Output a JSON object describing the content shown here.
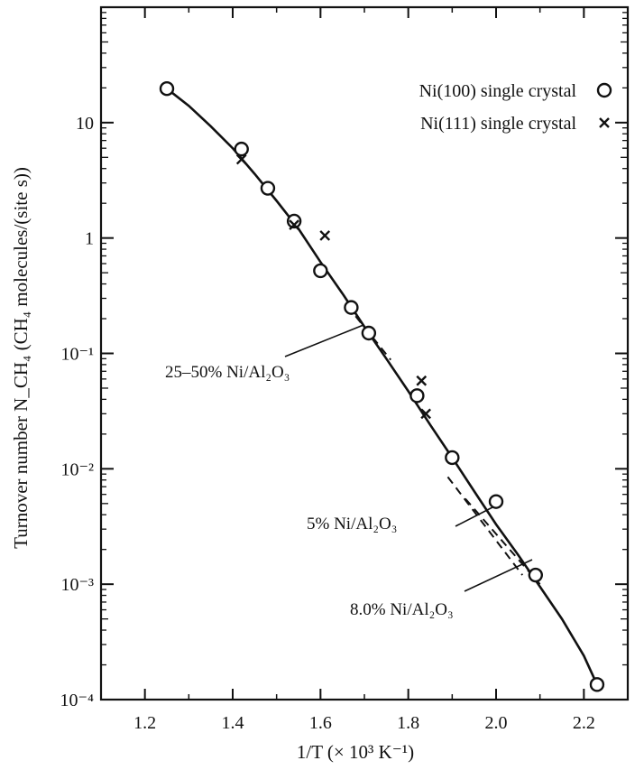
{
  "chart_data": {
    "type": "scatter",
    "xlabel": "1/T (× 10³ K⁻¹)",
    "ylabel": "Turnover number N_CH₄ (CH₄ molecules/(site s))",
    "xlim": [
      1.1,
      2.3
    ],
    "ylim": [
      0.0001,
      100
    ],
    "log_y": true,
    "grid": false,
    "legend_position": "top-right",
    "x_ticks": [
      {
        "value": 1.2,
        "label": "1.2"
      },
      {
        "value": 1.4,
        "label": "1.4"
      },
      {
        "value": 1.6,
        "label": "1.6"
      },
      {
        "value": 1.8,
        "label": "1.8"
      },
      {
        "value": 2.0,
        "label": "2.0"
      },
      {
        "value": 2.2,
        "label": "2.2"
      }
    ],
    "y_ticks": [
      {
        "value": 10,
        "label": "10"
      },
      {
        "value": 1,
        "label": "1"
      },
      {
        "value": 0.1,
        "label": "10⁻¹"
      },
      {
        "value": 0.01,
        "label": "10⁻²"
      },
      {
        "value": 0.001,
        "label": "10⁻³"
      },
      {
        "value": 0.0001,
        "label": "10⁻⁴"
      }
    ],
    "series": [
      {
        "name": "Ni(100) single crystal",
        "marker": "circle",
        "x": [
          1.25,
          1.42,
          1.48,
          1.54,
          1.6,
          1.67,
          1.71,
          1.82,
          1.9,
          2.0,
          2.09,
          2.23
        ],
        "y": [
          19.7,
          5.9,
          2.7,
          1.4,
          0.52,
          0.25,
          0.15,
          0.043,
          0.0125,
          0.0052,
          0.0012,
          0.000135
        ]
      },
      {
        "name": "Ni(111) single crystal",
        "marker": "cross",
        "x": [
          1.42,
          1.54,
          1.61,
          1.83,
          1.84
        ],
        "y": [
          4.8,
          1.3,
          1.05,
          0.058,
          0.03
        ]
      },
      {
        "name": "fit",
        "style": "solid-line",
        "x": [
          1.25,
          1.3,
          1.35,
          1.4,
          1.45,
          1.5,
          1.55,
          1.6,
          1.65,
          1.7,
          1.75,
          1.8,
          1.85,
          1.9,
          1.95,
          2.0,
          2.05,
          2.1,
          2.15,
          2.2,
          2.23
        ],
        "y": [
          19.7,
          14.0,
          9.3,
          6.0,
          3.6,
          2.1,
          1.2,
          0.62,
          0.33,
          0.17,
          0.09,
          0.047,
          0.024,
          0.0125,
          0.0064,
          0.0033,
          0.0018,
          0.00095,
          0.0005,
          0.00024,
          0.000135
        ]
      }
    ],
    "annotations": [
      {
        "name": "ann-25-50",
        "text": "25–50% Ni/Al₂O₃"
      },
      {
        "name": "ann-5",
        "text": "5% Ni/Al₂O₃"
      },
      {
        "name": "ann-8",
        "text": "8.0% Ni/Al₂O₃"
      }
    ],
    "dashed_segments": [
      {
        "name": "dash-25-50",
        "x": [
          1.68,
          1.76
        ],
        "y": [
          0.21,
          0.088
        ]
      },
      {
        "name": "dash-5",
        "x": [
          1.89,
          2.06
        ],
        "y": [
          0.0085,
          0.0012
        ]
      },
      {
        "name": "dash-8",
        "x": [
          1.93,
          2.1
        ],
        "y": [
          0.0055,
          0.001
        ]
      }
    ]
  }
}
